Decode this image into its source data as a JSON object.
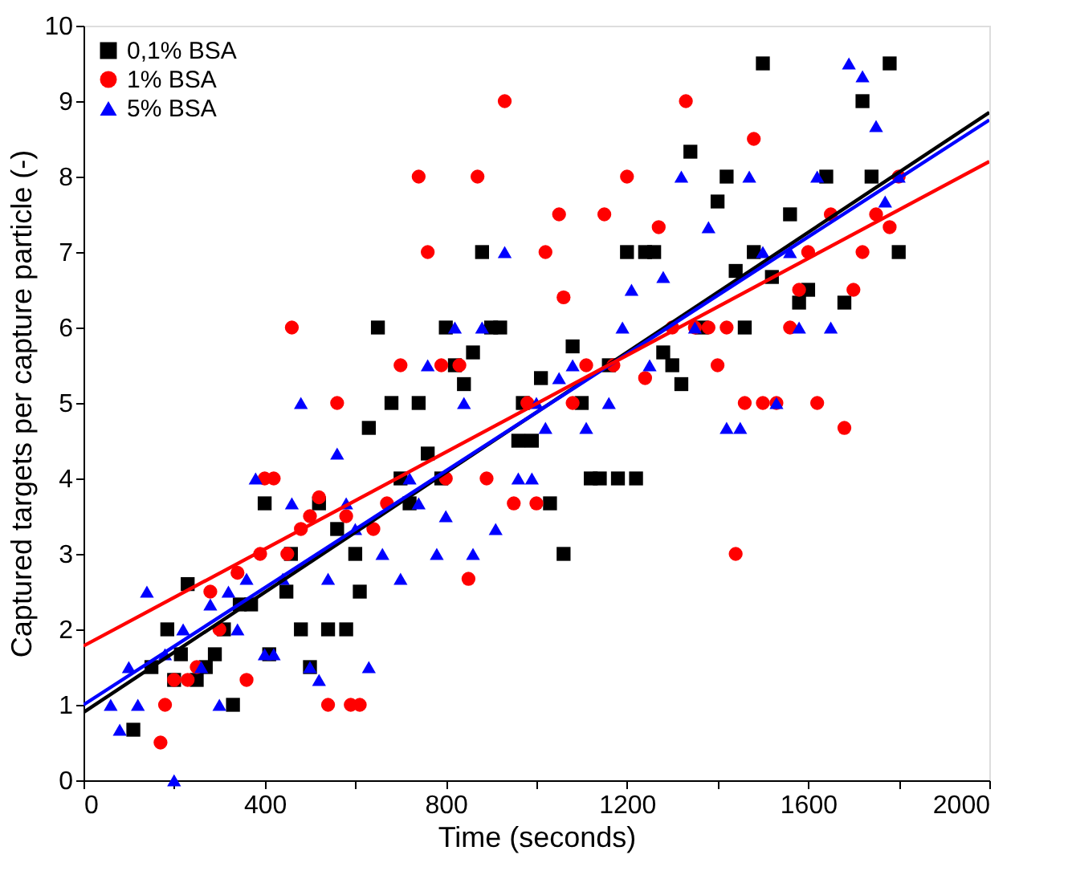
{
  "chart_data": {
    "type": "scatter",
    "xlabel": "Time (seconds)",
    "ylabel": "Captured targets per capture particle (-)",
    "xlim": [
      0,
      2000
    ],
    "ylim": [
      0,
      10
    ],
    "xticks": [
      0,
      {
        "value": 200,
        "label": null
      },
      400,
      {
        "value": 600,
        "label": null
      },
      800,
      {
        "value": 1000,
        "label": null
      },
      1200,
      {
        "value": 1400,
        "label": null
      },
      1600,
      {
        "value": 1800,
        "label": null
      },
      2000
    ],
    "yticks": [
      0,
      1,
      2,
      3,
      4,
      5,
      6,
      7,
      8,
      9,
      10
    ],
    "grid": false,
    "legend": "top left",
    "series": [
      {
        "name": "0,1% BSA",
        "color": "#000000",
        "marker": "square",
        "x": [
          110,
          150,
          185,
          200,
          215,
          230,
          250,
          270,
          290,
          310,
          330,
          345,
          370,
          400,
          410,
          448,
          458,
          480,
          500,
          520,
          540,
          560,
          580,
          600,
          610,
          630,
          650,
          680,
          700,
          720,
          740,
          760,
          790,
          800,
          820,
          840,
          860,
          880,
          900,
          920,
          960,
          970,
          990,
          1010,
          1030,
          1060,
          1080,
          1100,
          1120,
          1140,
          1160,
          1180,
          1200,
          1220,
          1240,
          1260,
          1280,
          1300,
          1320,
          1340,
          1365,
          1400,
          1420,
          1440,
          1460,
          1480,
          1500,
          1520,
          1560,
          1580,
          1600,
          1640,
          1680,
          1720,
          1740,
          1780,
          1800
        ],
        "values": [
          0.67,
          1.5,
          2,
          1.33,
          1.67,
          2.6,
          1.33,
          1.5,
          1.67,
          2,
          1,
          2.33,
          2.33,
          3.67,
          1.67,
          2.5,
          3,
          2,
          1.5,
          3.67,
          2,
          3.33,
          2,
          3,
          2.5,
          4.67,
          6,
          5,
          4,
          3.67,
          5,
          4.33,
          4,
          6,
          5.5,
          5.25,
          5.67,
          7,
          6,
          6,
          4.5,
          5,
          4.5,
          5.33,
          3.67,
          3,
          5.75,
          5,
          4,
          4,
          5.5,
          4,
          7,
          4,
          7,
          7,
          5.67,
          5.5,
          5.25,
          8.33,
          6,
          7.67,
          8,
          6.75,
          6,
          7,
          9.5,
          6.67,
          7.5,
          6.33,
          6.5,
          8,
          6.33,
          9,
          8,
          9.5,
          7
        ]
      },
      {
        "name": "1% BSA",
        "color": "#ff0000",
        "marker": "circle",
        "x": [
          170,
          180,
          200,
          230,
          250,
          280,
          300,
          340,
          360,
          390,
          400,
          420,
          450,
          460,
          480,
          500,
          520,
          540,
          560,
          580,
          590,
          610,
          640,
          670,
          700,
          740,
          760,
          790,
          800,
          830,
          850,
          870,
          890,
          930,
          950,
          980,
          1000,
          1020,
          1050,
          1060,
          1080,
          1110,
          1150,
          1170,
          1200,
          1240,
          1270,
          1300,
          1330,
          1350,
          1380,
          1400,
          1420,
          1440,
          1460,
          1480,
          1500,
          1530,
          1560,
          1580,
          1600,
          1620,
          1650,
          1680,
          1700,
          1720,
          1750,
          1780,
          1800
        ],
        "values": [
          0.5,
          1,
          1.33,
          1.33,
          1.5,
          2.5,
          2,
          2.75,
          1.33,
          3,
          4,
          4,
          3,
          6,
          3.33,
          3.5,
          3.75,
          1,
          5,
          3.5,
          1,
          1,
          3.33,
          3.67,
          5.5,
          8,
          7,
          5.5,
          4,
          5.5,
          2.67,
          8,
          4,
          9,
          3.67,
          5,
          3.67,
          7,
          7.5,
          6.4,
          5,
          5.5,
          7.5,
          5.5,
          8,
          5.33,
          7.33,
          6,
          9,
          6,
          6,
          5.5,
          6,
          3,
          5,
          8.5,
          5,
          5,
          6,
          6.5,
          7,
          5,
          7.5,
          4.67,
          6.5,
          7,
          7.5,
          7.33,
          8
        ]
      },
      {
        "name": "5% BSA",
        "color": "#0000ff",
        "marker": "triangle",
        "x": [
          60,
          80,
          100,
          120,
          140,
          180,
          200,
          220,
          260,
          280,
          300,
          320,
          340,
          360,
          380,
          400,
          420,
          440,
          460,
          480,
          500,
          520,
          540,
          560,
          580,
          600,
          630,
          660,
          700,
          720,
          740,
          760,
          780,
          800,
          820,
          840,
          860,
          880,
          910,
          930,
          960,
          990,
          1000,
          1020,
          1050,
          1080,
          1110,
          1160,
          1190,
          1210,
          1250,
          1280,
          1320,
          1350,
          1380,
          1420,
          1450,
          1470,
          1500,
          1530,
          1560,
          1580,
          1620,
          1650,
          1690,
          1720,
          1750,
          1770,
          1800
        ],
        "values": [
          1,
          0.67,
          1.5,
          1,
          2.5,
          1.67,
          0,
          2,
          1.5,
          2.33,
          1,
          2.5,
          2,
          2.67,
          4,
          1.67,
          1.67,
          2.67,
          3.67,
          5,
          1.5,
          1.33,
          2.67,
          4.33,
          3.67,
          3.33,
          1.5,
          3,
          2.67,
          4,
          3.67,
          5.5,
          3,
          3.5,
          6,
          5,
          3,
          6,
          3.33,
          7,
          4,
          4,
          5,
          4.67,
          5.33,
          5.5,
          4.67,
          5,
          6,
          6.5,
          5.5,
          6.67,
          8,
          6,
          7.33,
          4.67,
          4.67,
          8,
          7,
          5,
          7,
          6,
          8,
          6,
          9.5,
          9.33,
          8.67,
          7.67,
          8
        ]
      },
      {
        "type": "line",
        "color": "#000000",
        "x": [
          0,
          2000
        ],
        "values": [
          0.9,
          8.85
        ]
      },
      {
        "type": "line",
        "color": "#0000ff",
        "x": [
          0,
          2000
        ],
        "values": [
          1.0,
          8.75
        ]
      },
      {
        "type": "line",
        "color": "#ff0000",
        "x": [
          0,
          2000
        ],
        "values": [
          1.78,
          8.2
        ]
      }
    ]
  }
}
